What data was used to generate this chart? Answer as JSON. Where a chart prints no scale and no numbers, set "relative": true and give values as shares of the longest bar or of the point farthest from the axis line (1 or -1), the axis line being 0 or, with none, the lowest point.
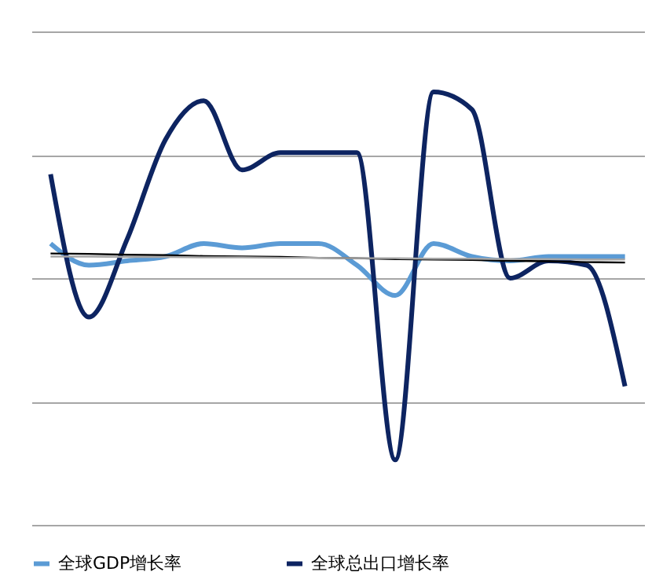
{
  "chart_data": {
    "type": "line",
    "relative": true,
    "categories": [
      null,
      null,
      null,
      null,
      null,
      null,
      null,
      null,
      null,
      null,
      null,
      null,
      null,
      null,
      null,
      null
    ],
    "series": [
      {
        "name": "全球GDP增长率",
        "color": "#5b9bd5",
        "values": [
          0.65,
          0.6,
          0.61,
          0.62,
          0.65,
          0.64,
          0.65,
          0.65,
          0.6,
          0.53,
          0.65,
          0.62,
          0.61,
          0.62,
          0.62,
          0.62
        ]
      },
      {
        "name": "全球总出口增长率",
        "color": "#0d2461",
        "values": [
          0.81,
          0.48,
          0.66,
          0.89,
          0.98,
          0.82,
          0.86,
          0.86,
          0.86,
          0.15,
          1.0,
          0.96,
          0.57,
          0.61,
          0.6,
          0.32
        ]
      },
      {
        "type": "line",
        "color": "#000000",
        "values": [
          0.627,
          0.626,
          0.624,
          0.623,
          0.621,
          0.62,
          0.619,
          0.617,
          0.616,
          0.614,
          0.613,
          0.612,
          0.61,
          0.609,
          0.607,
          0.606
        ]
      },
      {
        "type": "line",
        "color": "#a6a6a6",
        "values": [
          0.62,
          0.62,
          0.619,
          0.619,
          0.618,
          0.618,
          0.617,
          0.617,
          0.616,
          0.616,
          0.615,
          0.615,
          0.614,
          0.614,
          0.613,
          0.613
        ]
      }
    ],
    "grid": "y",
    "legend": "bottom",
    "marker": "none",
    "line_style": "solid"
  }
}
